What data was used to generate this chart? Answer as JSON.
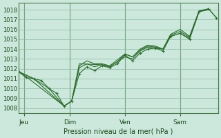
{
  "background_color": "#cce8dc",
  "plot_bg_color": "#cce8dc",
  "grid_color": "#8abaa0",
  "line_color": "#2d6e2d",
  "marker_color": "#2d6e2d",
  "xlabel": "Pression niveau de la mer( hPa )",
  "ylim": [
    1007.5,
    1018.7
  ],
  "xlim": [
    0,
    10.5
  ],
  "yticks": [
    1008,
    1009,
    1010,
    1011,
    1012,
    1013,
    1014,
    1015,
    1016,
    1017,
    1018
  ],
  "xtick_labels": [
    "Jeu",
    "Dim",
    "Ven",
    "Sam"
  ],
  "xtick_positions": [
    0.3,
    2.7,
    5.6,
    8.5
  ],
  "vlines": [
    0.3,
    2.7,
    5.6,
    8.5
  ],
  "series1_x": [
    0.0,
    0.4,
    0.8,
    1.2,
    1.6,
    2.0,
    2.4,
    2.8,
    3.2,
    3.6,
    4.0,
    4.4,
    4.8,
    5.2,
    5.6,
    6.0,
    6.4,
    6.8,
    7.2,
    7.6,
    8.0,
    8.5,
    9.0,
    9.5,
    10.0,
    10.4
  ],
  "series1_y": [
    1011.7,
    1011.1,
    1011.0,
    1010.8,
    1010.0,
    1009.5,
    1008.2,
    1008.7,
    1011.5,
    1012.2,
    1011.8,
    1012.3,
    1012.1,
    1012.5,
    1013.4,
    1012.8,
    1013.6,
    1014.0,
    1014.1,
    1013.8,
    1015.3,
    1015.6,
    1015.0,
    1017.8,
    1018.1,
    1017.2
  ],
  "series2_x": [
    0.0,
    0.8,
    1.6,
    2.4,
    2.8,
    3.2,
    3.6,
    4.0,
    4.4,
    4.8,
    5.2,
    5.6,
    6.0,
    6.4,
    6.8,
    7.2,
    7.6,
    8.0,
    8.5,
    9.0,
    9.5,
    10.0
  ],
  "series2_y": [
    1011.7,
    1011.0,
    1010.0,
    1008.2,
    1008.7,
    1012.1,
    1012.5,
    1012.2,
    1012.4,
    1012.2,
    1012.7,
    1013.2,
    1013.0,
    1013.8,
    1014.2,
    1014.1,
    1014.0,
    1015.3,
    1015.6,
    1015.1,
    1017.8,
    1018.0
  ],
  "series3_x": [
    0.0,
    0.8,
    2.4,
    2.8,
    3.2,
    3.6,
    4.0,
    4.4,
    4.8,
    5.2,
    5.6,
    6.0,
    6.4,
    6.8,
    7.2,
    7.6,
    8.0,
    8.5,
    9.0,
    9.5,
    10.0
  ],
  "series3_y": [
    1011.7,
    1011.0,
    1008.2,
    1008.7,
    1012.3,
    1012.8,
    1012.5,
    1012.5,
    1012.3,
    1012.9,
    1013.5,
    1013.2,
    1013.9,
    1014.3,
    1014.2,
    1014.0,
    1015.4,
    1015.8,
    1015.2,
    1017.9,
    1018.0
  ],
  "series4_x": [
    0.0,
    2.4,
    2.8,
    3.2,
    4.4,
    4.8,
    5.2,
    5.6,
    6.0,
    6.4,
    6.8,
    7.2,
    7.6,
    8.0,
    8.5,
    9.0,
    9.5,
    10.0,
    10.4
  ],
  "series4_y": [
    1011.8,
    1008.2,
    1008.7,
    1012.5,
    1012.4,
    1012.2,
    1012.7,
    1013.5,
    1013.2,
    1014.0,
    1014.4,
    1014.3,
    1014.0,
    1015.5,
    1016.0,
    1015.3,
    1017.9,
    1018.1,
    1017.2
  ]
}
